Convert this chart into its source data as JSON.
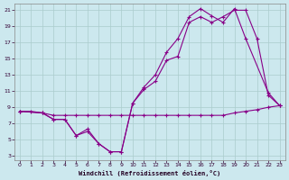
{
  "background_color": "#cce8ee",
  "line_color": "#880088",
  "grid_color": "#aacccc",
  "xlabel": "Windchill (Refroidissement éolien,°C)",
  "xlim": [
    -0.5,
    23.5
  ],
  "ylim": [
    2.5,
    21.8
  ],
  "xticks": [
    0,
    1,
    2,
    3,
    4,
    5,
    6,
    7,
    8,
    9,
    10,
    11,
    12,
    13,
    14,
    15,
    16,
    17,
    18,
    19,
    20,
    21,
    22,
    23
  ],
  "yticks": [
    3,
    5,
    7,
    9,
    11,
    13,
    15,
    17,
    19,
    21
  ],
  "line_flat_x": [
    0,
    1,
    2,
    3,
    4,
    5,
    6,
    7,
    8,
    9,
    10,
    11,
    12,
    13,
    14,
    15,
    16,
    17,
    18,
    19,
    20,
    21,
    22,
    23
  ],
  "line_flat_y": [
    8.5,
    8.5,
    8.3,
    8.0,
    8.0,
    8.0,
    8.0,
    8.0,
    8.0,
    8.0,
    8.0,
    8.0,
    8.0,
    8.0,
    8.0,
    8.0,
    8.0,
    8.0,
    8.0,
    8.3,
    8.5,
    8.7,
    9.0,
    9.2
  ],
  "line_dip_x": [
    0,
    2,
    3,
    4,
    5,
    6,
    7,
    8,
    9,
    10,
    11,
    12,
    13,
    14,
    15,
    16,
    17,
    18,
    19,
    20,
    21,
    22,
    23
  ],
  "line_dip_y": [
    8.5,
    8.3,
    7.5,
    7.5,
    5.5,
    6.3,
    4.5,
    3.5,
    3.5,
    9.5,
    11.2,
    12.2,
    14.8,
    15.3,
    19.5,
    20.2,
    19.5,
    20.2,
    21.0,
    21.0,
    17.5,
    10.5,
    9.2
  ],
  "line_smooth_x": [
    0,
    2,
    3,
    4,
    5,
    6,
    7,
    8,
    9,
    10,
    11,
    12,
    13,
    14,
    15,
    16,
    17,
    18,
    19,
    20,
    22,
    23
  ],
  "line_smooth_y": [
    8.5,
    8.3,
    7.5,
    7.5,
    5.5,
    6.0,
    4.5,
    3.5,
    3.5,
    9.5,
    11.5,
    13.0,
    15.8,
    17.5,
    20.2,
    21.2,
    20.3,
    19.5,
    21.2,
    17.5,
    10.8,
    9.2
  ]
}
